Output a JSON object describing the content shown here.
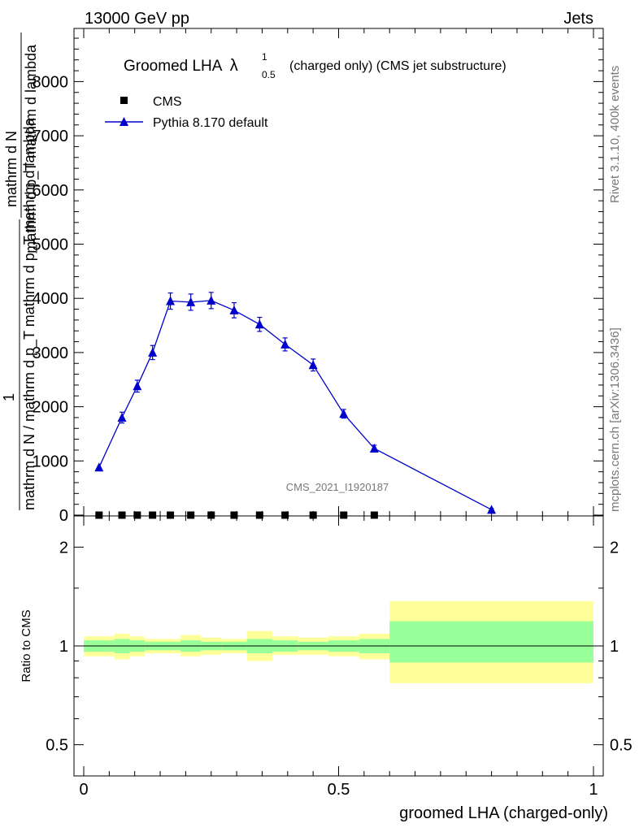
{
  "header": {
    "energy": "13000 GeV pp",
    "process": "Jets"
  },
  "side_labels": {
    "rivet": "Rivet 3.1.10,  400k events",
    "mcplots": "mcplots.cern.ch [arXiv:1306.3436]"
  },
  "chart_data": [
    {
      "type": "line",
      "panel": "main",
      "title": "Groomed LHA",
      "title_symbol": "λ",
      "title_sub": "0.5",
      "title_sup": "1",
      "title_suffix": "(charged only) (CMS jet substructure)",
      "analysis_tag": "CMS_2021_I1920187",
      "ylabel_numerator": "1",
      "ylabel_numerator_part": "mathrm d²N",
      "ylabel_denominator": "mathrm d N / mathrm d p_mathrm d p_mathrm d lambda",
      "ylabel_lines": [
        "mathrm d N",
        "mathrm d p_T mathrm d lambda",
        "1",
        "mathrm d N / mathrm d p_T mathrm d p_T mathrm d lambda"
      ],
      "xlim": [
        0,
        1
      ],
      "ylim": [
        0,
        9000
      ],
      "yticks": [
        {
          "value": 0,
          "label": "0"
        },
        {
          "value": 1000,
          "label": "1000"
        },
        {
          "value": 2000,
          "label": "2000"
        },
        {
          "value": 3000,
          "label": "3000"
        },
        {
          "value": 4000,
          "label": "4000"
        },
        {
          "value": 5000,
          "label": "5000"
        },
        {
          "value": 6000,
          "label": "6000"
        },
        {
          "value": 7000,
          "label": "7000"
        },
        {
          "value": 8000,
          "label": "8000"
        }
      ],
      "legend_position": "top-left",
      "series": [
        {
          "name": "CMS",
          "marker": "square",
          "color": "#000000",
          "points": [
            {
              "x": 0.03,
              "y": 0
            },
            {
              "x": 0.075,
              "y": 0
            },
            {
              "x": 0.105,
              "y": 0
            },
            {
              "x": 0.135,
              "y": 0
            },
            {
              "x": 0.17,
              "y": 0
            },
            {
              "x": 0.21,
              "y": 0
            },
            {
              "x": 0.25,
              "y": 0
            },
            {
              "x": 0.295,
              "y": 0
            },
            {
              "x": 0.345,
              "y": 0
            },
            {
              "x": 0.395,
              "y": 0
            },
            {
              "x": 0.45,
              "y": 0
            },
            {
              "x": 0.51,
              "y": 0
            },
            {
              "x": 0.57,
              "y": 0
            }
          ]
        },
        {
          "name": "Pythia 8.170 default",
          "marker": "triangle",
          "color": "#0000cc",
          "points": [
            {
              "x": 0.03,
              "y": 880,
              "err": 0
            },
            {
              "x": 0.075,
              "y": 1800,
              "err": 100
            },
            {
              "x": 0.105,
              "y": 2380,
              "err": 110
            },
            {
              "x": 0.135,
              "y": 3000,
              "err": 130
            },
            {
              "x": 0.17,
              "y": 3950,
              "err": 150
            },
            {
              "x": 0.21,
              "y": 3930,
              "err": 150
            },
            {
              "x": 0.25,
              "y": 3960,
              "err": 150
            },
            {
              "x": 0.295,
              "y": 3780,
              "err": 140
            },
            {
              "x": 0.345,
              "y": 3520,
              "err": 130
            },
            {
              "x": 0.395,
              "y": 3150,
              "err": 120
            },
            {
              "x": 0.45,
              "y": 2770,
              "err": 110
            },
            {
              "x": 0.51,
              "y": 1870,
              "err": 80
            },
            {
              "x": 0.57,
              "y": 1230,
              "err": 60
            },
            {
              "x": 0.8,
              "y": 100,
              "err": 20
            }
          ]
        }
      ]
    },
    {
      "type": "area",
      "panel": "ratio",
      "ylabel": "Ratio to CMS",
      "xlabel": "groomed LHA (charged-only)",
      "scale": "log",
      "xlim": [
        0,
        1
      ],
      "ylim": [
        0.4,
        2.3
      ],
      "xticks": [
        {
          "value": 0,
          "label": "0"
        },
        {
          "value": 0.5,
          "label": "0.5"
        },
        {
          "value": 1,
          "label": "1"
        }
      ],
      "yticks": [
        {
          "value": 0.5,
          "label": "0.5"
        },
        {
          "value": 1,
          "label": "1"
        },
        {
          "value": 2,
          "label": "2"
        }
      ],
      "reference_line": 1,
      "band_colors": {
        "outer": "#ffff99",
        "inner": "#99ff99"
      },
      "bins": [
        {
          "x0": 0.0,
          "x1": 0.06,
          "outer": [
            0.93,
            1.07
          ],
          "inner": [
            0.96,
            1.04
          ]
        },
        {
          "x0": 0.06,
          "x1": 0.09,
          "outer": [
            0.91,
            1.09
          ],
          "inner": [
            0.95,
            1.05
          ]
        },
        {
          "x0": 0.09,
          "x1": 0.12,
          "outer": [
            0.93,
            1.07
          ],
          "inner": [
            0.96,
            1.04
          ]
        },
        {
          "x0": 0.12,
          "x1": 0.15,
          "outer": [
            0.95,
            1.05
          ],
          "inner": [
            0.97,
            1.03
          ]
        },
        {
          "x0": 0.15,
          "x1": 0.19,
          "outer": [
            0.95,
            1.05
          ],
          "inner": [
            0.97,
            1.03
          ]
        },
        {
          "x0": 0.19,
          "x1": 0.23,
          "outer": [
            0.93,
            1.08
          ],
          "inner": [
            0.96,
            1.04
          ]
        },
        {
          "x0": 0.23,
          "x1": 0.27,
          "outer": [
            0.94,
            1.06
          ],
          "inner": [
            0.97,
            1.03
          ]
        },
        {
          "x0": 0.27,
          "x1": 0.32,
          "outer": [
            0.95,
            1.05
          ],
          "inner": [
            0.97,
            1.03
          ]
        },
        {
          "x0": 0.32,
          "x1": 0.37,
          "outer": [
            0.9,
            1.11
          ],
          "inner": [
            0.95,
            1.05
          ]
        },
        {
          "x0": 0.37,
          "x1": 0.42,
          "outer": [
            0.94,
            1.07
          ],
          "inner": [
            0.96,
            1.04
          ]
        },
        {
          "x0": 0.42,
          "x1": 0.48,
          "outer": [
            0.94,
            1.06
          ],
          "inner": [
            0.97,
            1.03
          ]
        },
        {
          "x0": 0.48,
          "x1": 0.54,
          "outer": [
            0.93,
            1.07
          ],
          "inner": [
            0.96,
            1.04
          ]
        },
        {
          "x0": 0.54,
          "x1": 0.6,
          "outer": [
            0.91,
            1.09
          ],
          "inner": [
            0.95,
            1.05
          ]
        },
        {
          "x0": 0.6,
          "x1": 1.0,
          "outer": [
            0.77,
            1.37
          ],
          "inner": [
            0.89,
            1.19
          ]
        }
      ]
    }
  ]
}
